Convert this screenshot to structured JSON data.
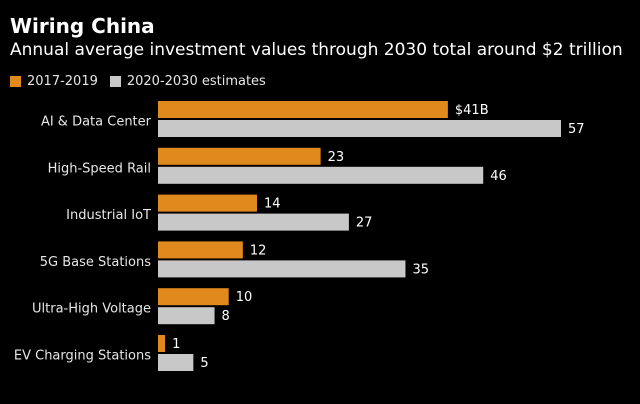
{
  "title": "Wiring China",
  "subtitle": "Annual average investment values through 2030 total around $2 trillion",
  "colors": {
    "series1": "#e08a1e",
    "series2": "#c8c8c8",
    "background": "#000000"
  },
  "chart_data": {
    "type": "bar",
    "orientation": "horizontal",
    "categories": [
      "AI & Data Center",
      "High-Speed Rail",
      "Industrial IoT",
      "5G Base Stations",
      "Ultra-High Voltage",
      "EV Charging Stations"
    ],
    "series": [
      {
        "name": "2017-2019",
        "values": [
          41,
          23,
          14,
          12,
          10,
          1
        ],
        "labels": [
          "$41B",
          "23",
          "14",
          "12",
          "10",
          "1"
        ]
      },
      {
        "name": "2020-2030 estimates",
        "values": [
          57,
          46,
          27,
          35,
          8,
          5
        ],
        "labels": [
          "57",
          "46",
          "27",
          "35",
          "8",
          "5"
        ]
      }
    ],
    "xlim": [
      0,
      57
    ],
    "grid": false,
    "legend": "top-left"
  }
}
